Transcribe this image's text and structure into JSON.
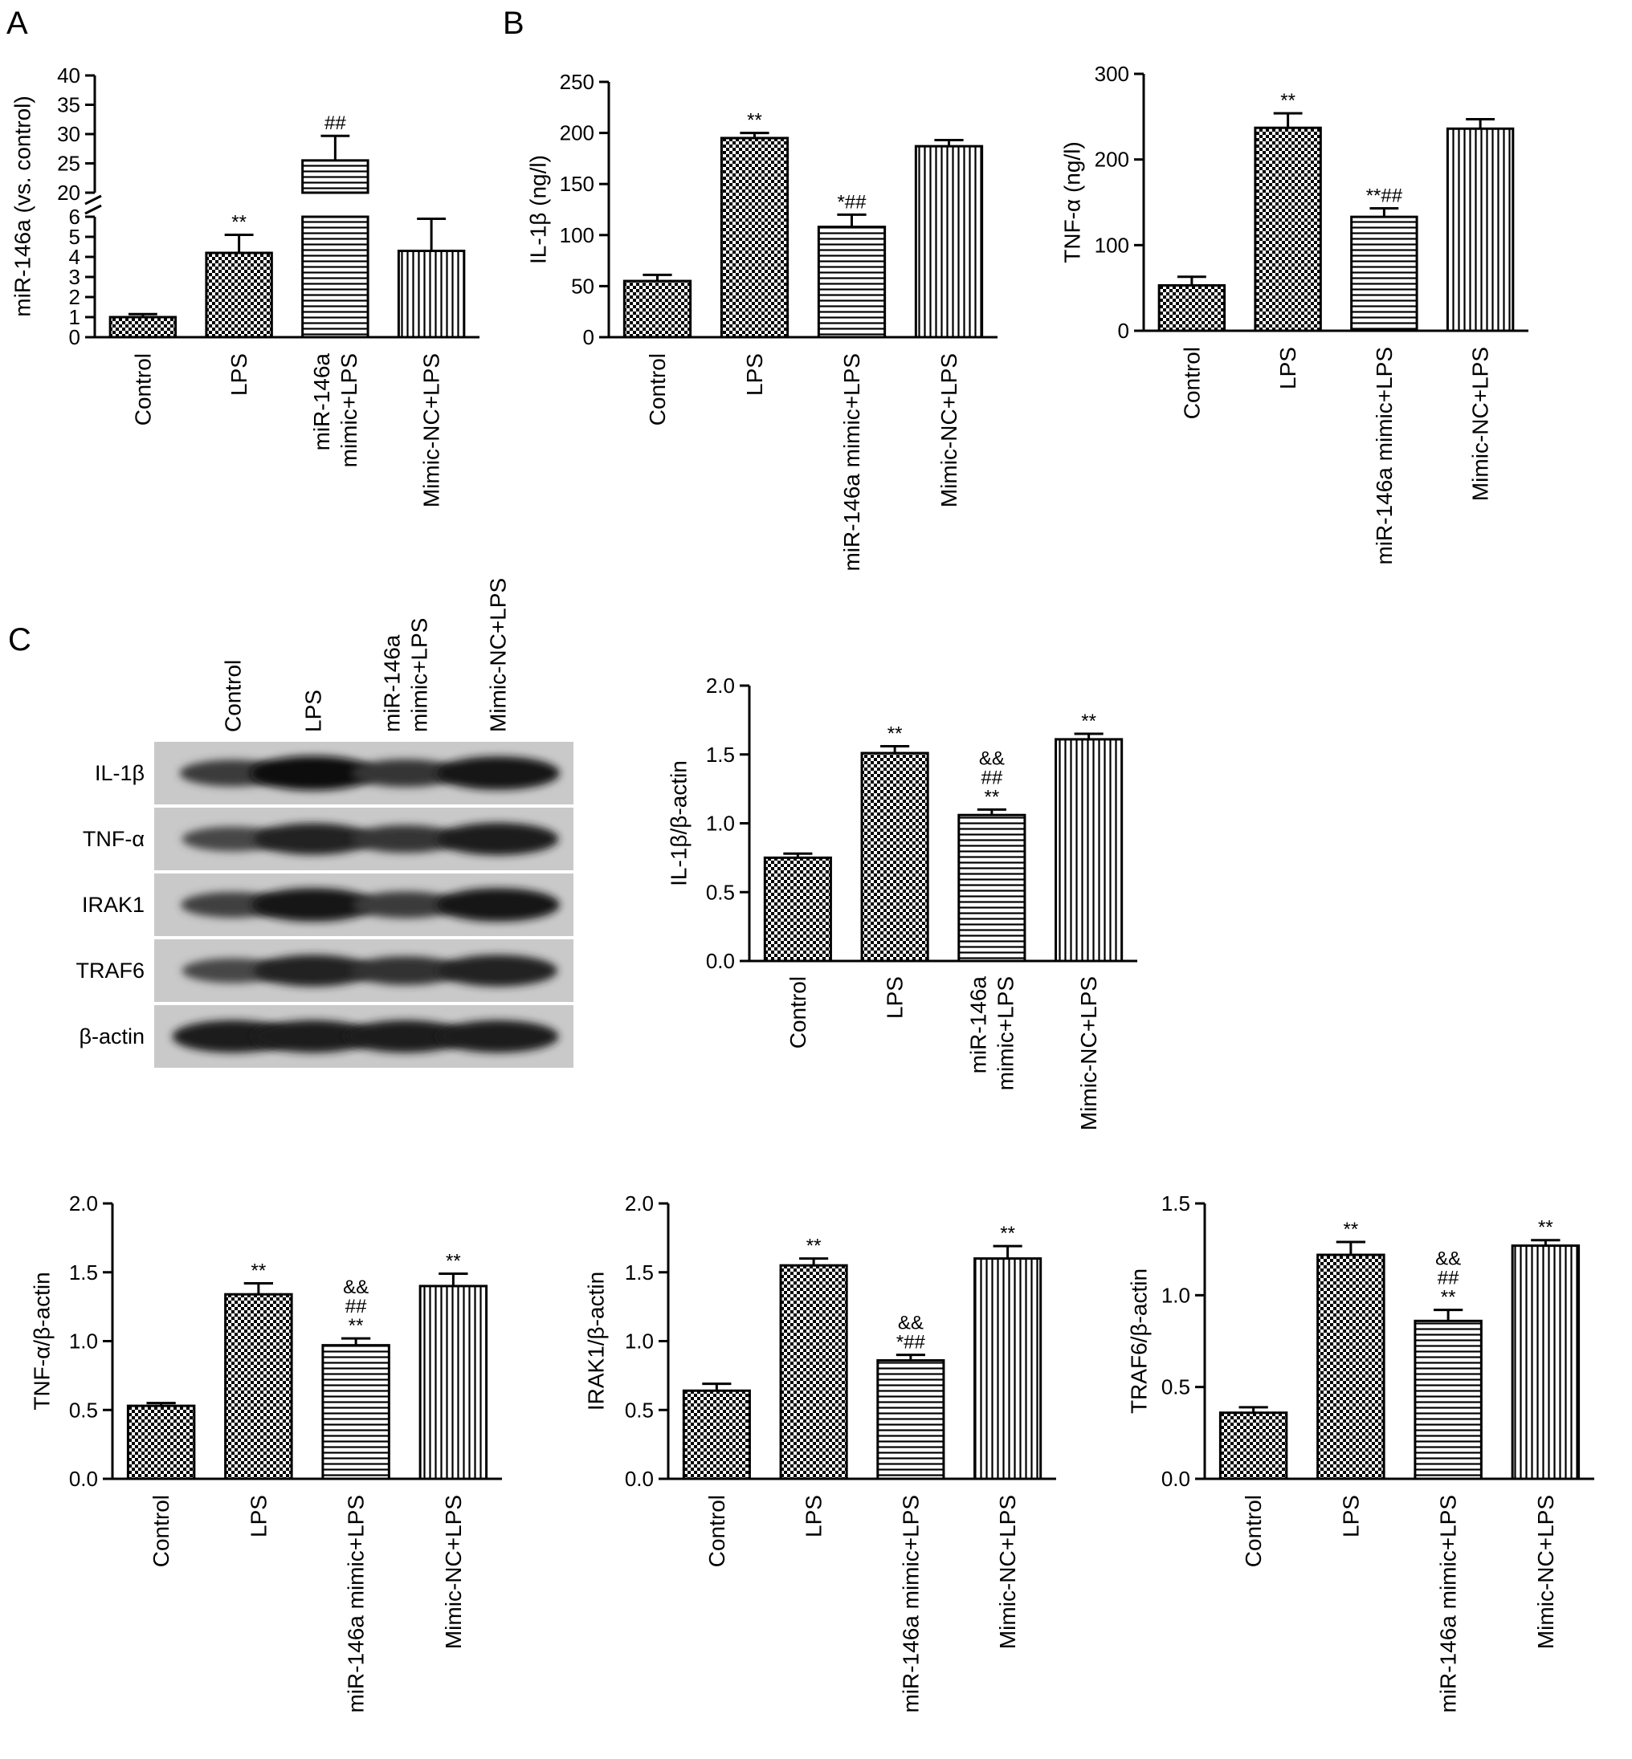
{
  "panels": [
    {
      "id": "panel-a",
      "letter": "A"
    },
    {
      "id": "panel-b",
      "letter": "B"
    },
    {
      "id": "panel-c",
      "letter": "C"
    }
  ],
  "colors": {
    "bar_fill": "#ffffff",
    "stroke": "#000000"
  },
  "blot": {
    "lanes": [
      "Control",
      "LPS",
      "miR-146a mimic+LPS",
      "Mimic-NC+LPS"
    ],
    "rows": [
      {
        "label": "IL-1β",
        "intensity": [
          0.55,
          0.95,
          0.6,
          0.9
        ]
      },
      {
        "label": "TNF-α",
        "intensity": [
          0.45,
          0.8,
          0.6,
          0.85
        ]
      },
      {
        "label": "IRAK1",
        "intensity": [
          0.5,
          0.9,
          0.55,
          0.9
        ]
      },
      {
        "label": "TRAF6",
        "intensity": [
          0.45,
          0.8,
          0.65,
          0.8
        ]
      },
      {
        "label": "β-actin",
        "intensity": [
          0.85,
          0.85,
          0.85,
          0.85
        ]
      }
    ]
  },
  "chart_data": [
    {
      "id": "chart-mir146a",
      "panel": "A",
      "type": "bar",
      "ylabel": "miR-146a (vs. control)",
      "axis_break": true,
      "ylim_lower": [
        0,
        6
      ],
      "ylim_upper": [
        20,
        40
      ],
      "yticks_lower": [
        "0",
        "1",
        "2",
        "3",
        "4",
        "5",
        "6"
      ],
      "yticks_upper": [
        "20",
        "25",
        "30",
        "35",
        "40"
      ],
      "categories": [
        "Control",
        "LPS",
        "miR-146a\nmimic+LPS",
        "Mimic-NC+LPS"
      ],
      "values": [
        1.0,
        4.2,
        25.5,
        4.3
      ],
      "errors": [
        0.15,
        0.9,
        4.2,
        1.6
      ],
      "patterns": [
        "checker",
        "checker",
        "hlines",
        "vlines"
      ],
      "annotations": [
        "",
        "**",
        "##",
        ""
      ]
    },
    {
      "id": "chart-il1b-elisa",
      "panel": "B",
      "type": "bar",
      "ylabel": "IL-1β (ng/l)",
      "ylim": [
        0,
        250
      ],
      "yticks": [
        "0",
        "50",
        "100",
        "150",
        "200",
        "250"
      ],
      "categories": [
        "Control",
        "LPS",
        "miR-146a mimic+LPS",
        "Mimic-NC+LPS"
      ],
      "values": [
        55,
        195,
        108,
        187
      ],
      "errors": [
        6,
        5,
        12,
        6
      ],
      "patterns": [
        "checker",
        "checker",
        "hlines",
        "vlines"
      ],
      "annotations": [
        "",
        "**",
        "*##",
        ""
      ]
    },
    {
      "id": "chart-tnfa-elisa",
      "panel": "B",
      "type": "bar",
      "ylabel": "TNF-α (ng/l)",
      "ylim": [
        0,
        300
      ],
      "yticks": [
        "0",
        "100",
        "200",
        "300"
      ],
      "categories": [
        "Control",
        "LPS",
        "miR-146a mimic+LPS",
        "Mimic-NC+LPS"
      ],
      "values": [
        53,
        237,
        133,
        236
      ],
      "errors": [
        10,
        17,
        10,
        11
      ],
      "patterns": [
        "checker",
        "checker",
        "hlines",
        "vlines"
      ],
      "annotations": [
        "",
        "**",
        "**##",
        ""
      ]
    },
    {
      "id": "chart-il1b-blot",
      "panel": "C",
      "type": "bar",
      "ylabel": "IL-1β/β-actin",
      "ylim": [
        0,
        2.0
      ],
      "yticks": [
        "0.0",
        "0.5",
        "1.0",
        "1.5",
        "2.0"
      ],
      "categories": [
        "Control",
        "LPS",
        "miR-146a\nmimic+LPS",
        "Mimic-NC+LPS"
      ],
      "values": [
        0.75,
        1.51,
        1.06,
        1.61
      ],
      "errors": [
        0.03,
        0.05,
        0.04,
        0.04
      ],
      "patterns": [
        "checker",
        "checker",
        "hlines",
        "vlines"
      ],
      "annotations": [
        "",
        "**",
        "&&\n##\n**",
        "**"
      ]
    },
    {
      "id": "chart-tnfa-blot",
      "panel": "C",
      "type": "bar",
      "ylabel": "TNF-α/β-actin",
      "ylim": [
        0,
        2.0
      ],
      "yticks": [
        "0.0",
        "0.5",
        "1.0",
        "1.5",
        "2.0"
      ],
      "categories": [
        "Control",
        "LPS",
        "miR-146a mimic+LPS",
        "Mimic-NC+LPS"
      ],
      "values": [
        0.53,
        1.34,
        0.97,
        1.4
      ],
      "errors": [
        0.02,
        0.08,
        0.05,
        0.09
      ],
      "patterns": [
        "checker",
        "checker",
        "hlines",
        "vlines"
      ],
      "annotations": [
        "",
        "**",
        "&&\n##\n**",
        "**"
      ]
    },
    {
      "id": "chart-irak1-blot",
      "panel": "C",
      "type": "bar",
      "ylabel": "IRAK1/β-actin",
      "ylim": [
        0,
        2.0
      ],
      "yticks": [
        "0.0",
        "0.5",
        "1.0",
        "1.5",
        "2.0"
      ],
      "categories": [
        "Control",
        "LPS",
        "miR-146a mimic+LPS",
        "Mimic-NC+LPS"
      ],
      "values": [
        0.64,
        1.55,
        0.86,
        1.6
      ],
      "errors": [
        0.05,
        0.05,
        0.04,
        0.09
      ],
      "patterns": [
        "checker",
        "checker",
        "hlines",
        "vlines"
      ],
      "annotations": [
        "",
        "**",
        "&&\n*##",
        "**"
      ]
    },
    {
      "id": "chart-traf6-blot",
      "panel": "C",
      "type": "bar",
      "ylabel": "TRAF6/β-actin",
      "ylim": [
        0,
        1.5
      ],
      "yticks": [
        "0.0",
        "0.5",
        "1.0",
        "1.5"
      ],
      "categories": [
        "Control",
        "LPS",
        "miR-146a mimic+LPS",
        "Mimic-NC+LPS"
      ],
      "values": [
        0.36,
        1.22,
        0.86,
        1.27
      ],
      "errors": [
        0.03,
        0.07,
        0.06,
        0.03
      ],
      "patterns": [
        "checker",
        "checker",
        "hlines",
        "vlines"
      ],
      "annotations": [
        "",
        "**",
        "&&\n##\n**",
        "**"
      ]
    }
  ]
}
